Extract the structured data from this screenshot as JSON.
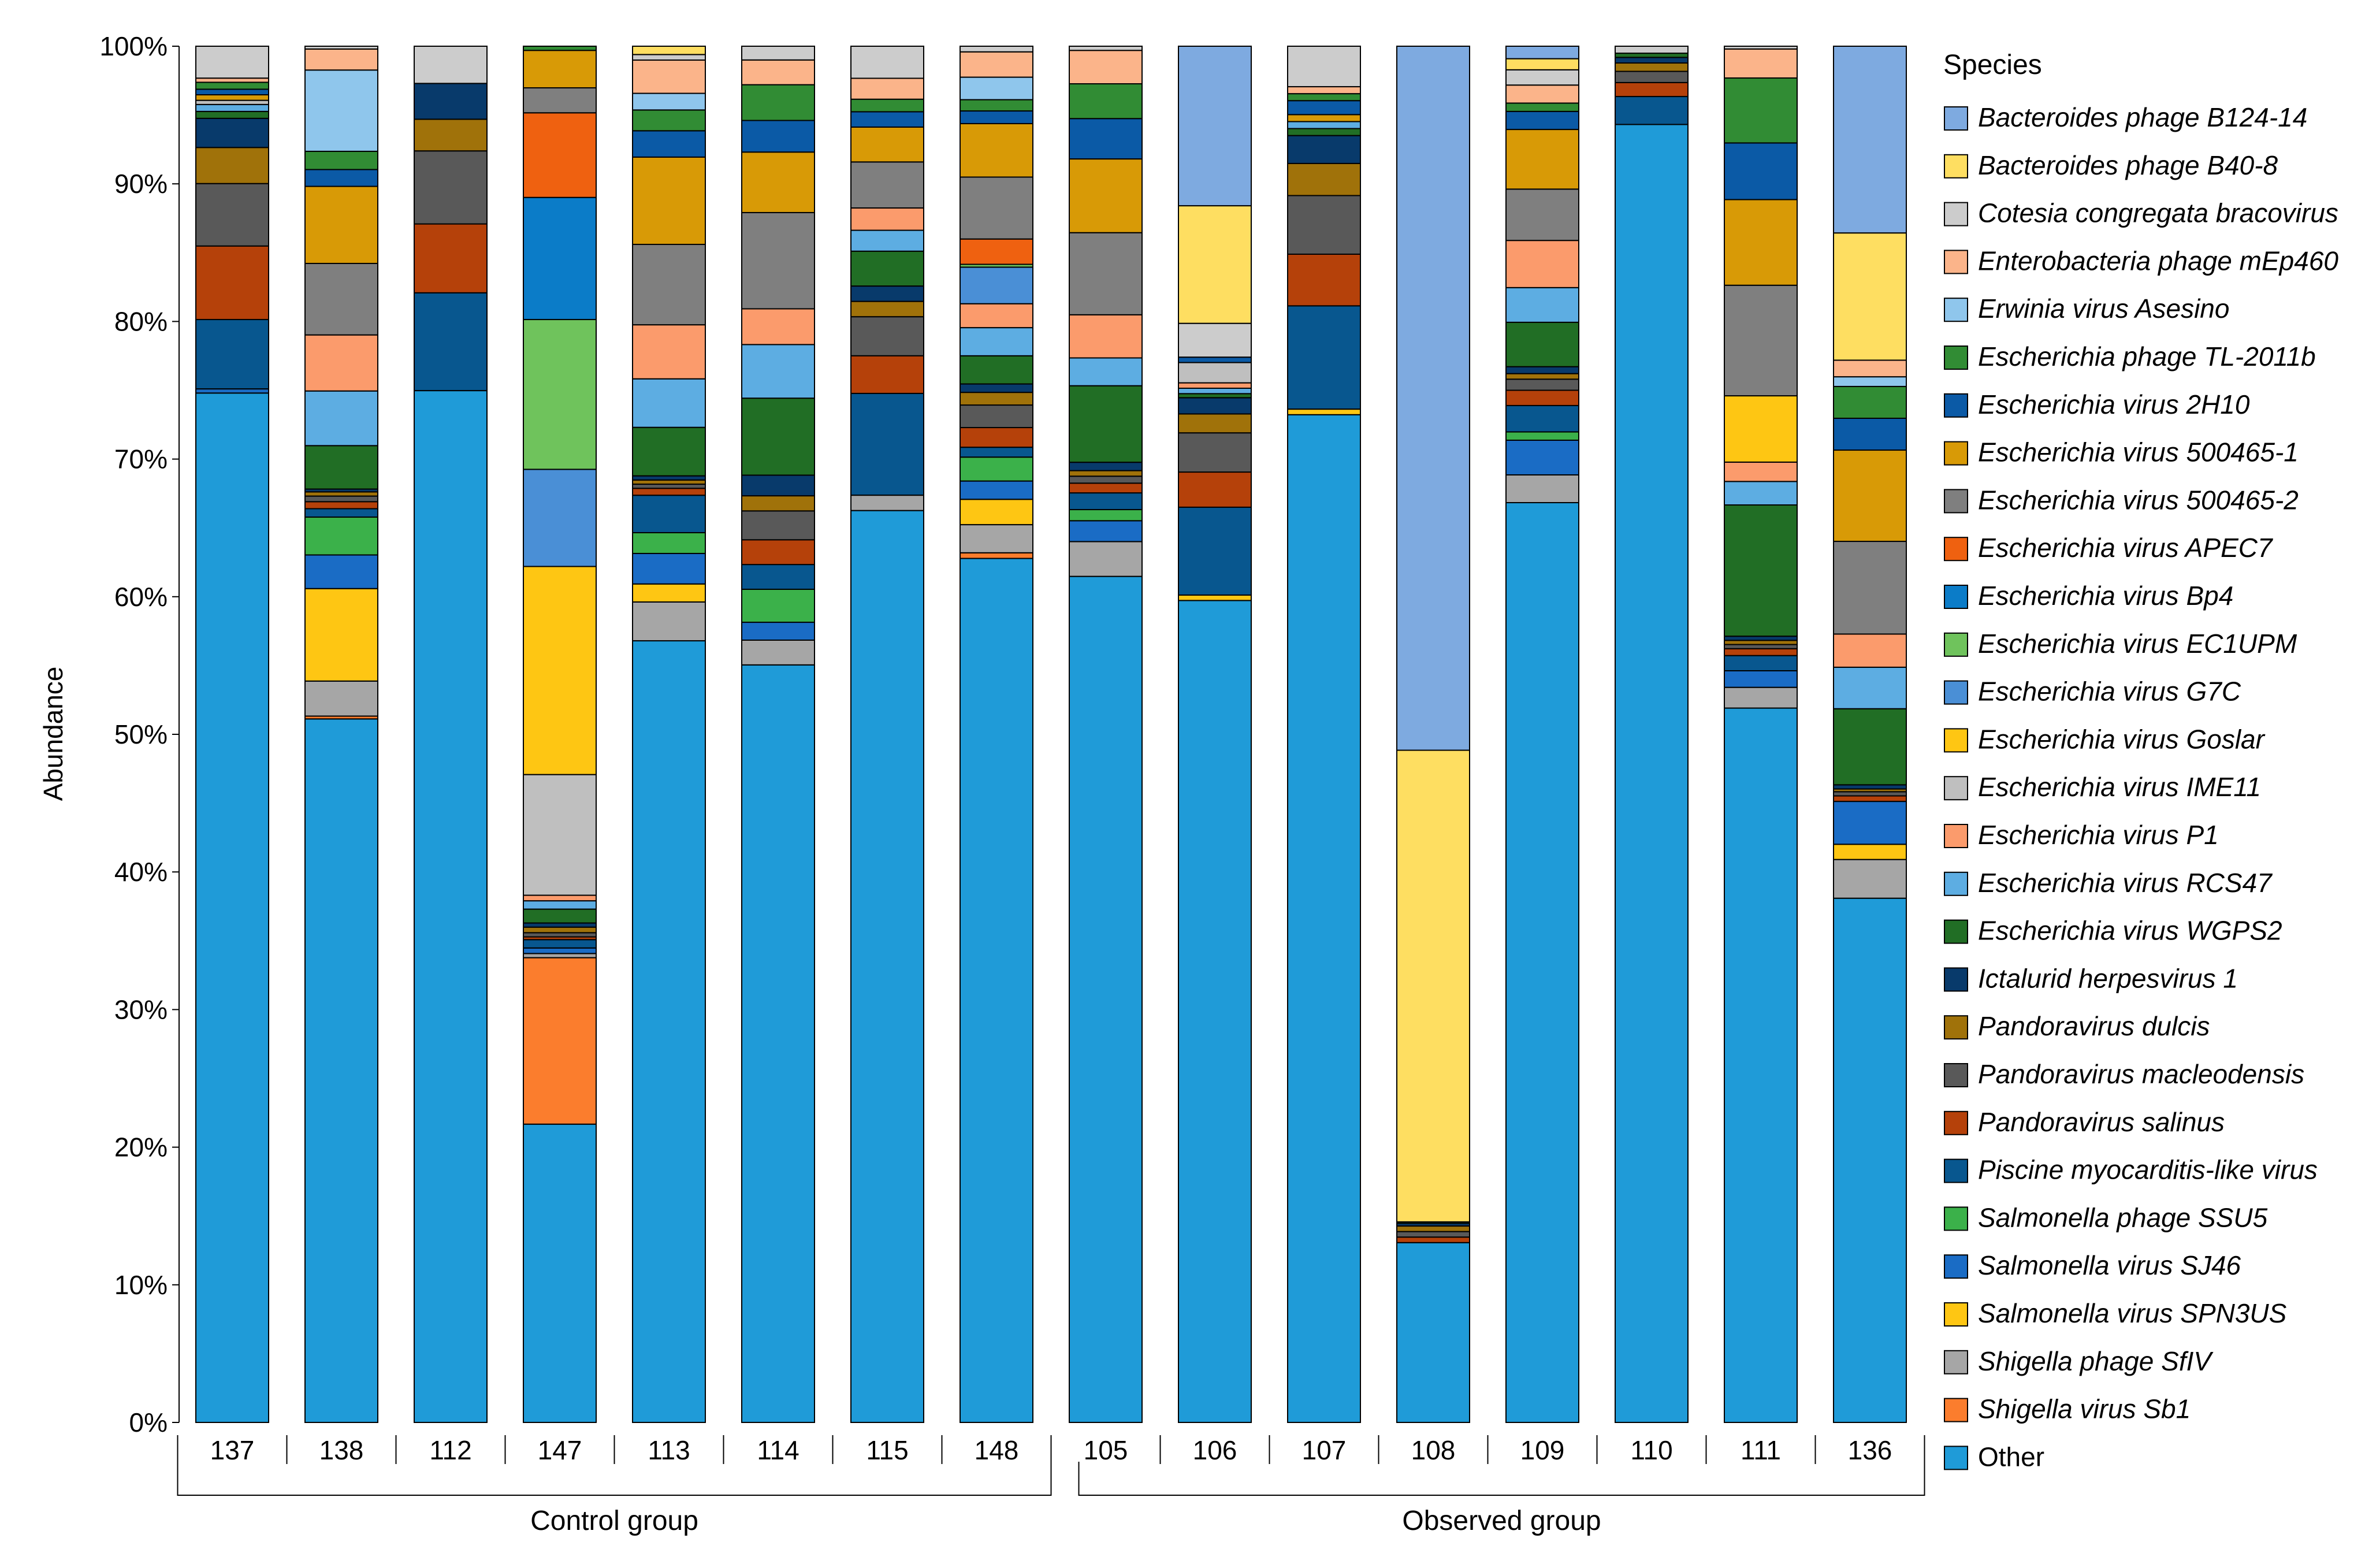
{
  "chart_data": {
    "type": "bar",
    "stacked": true,
    "ylabel": "Abundance",
    "ylim": [
      0,
      100
    ],
    "y_ticks": [
      "0%",
      "10%",
      "20%",
      "30%",
      "40%",
      "50%",
      "60%",
      "70%",
      "80%",
      "90%",
      "100%"
    ],
    "legend_title": "Species",
    "legend_position": "right",
    "groups": [
      {
        "label": "Control group",
        "categories": [
          "137",
          "138",
          "112",
          "147",
          "113",
          "114",
          "115",
          "148"
        ]
      },
      {
        "label": "Observed group",
        "categories": [
          "105",
          "106",
          "107",
          "108",
          "109",
          "110",
          "111",
          "136"
        ]
      }
    ],
    "categories": [
      "137",
      "138",
      "112",
      "147",
      "113",
      "114",
      "115",
      "148",
      "105",
      "106",
      "107",
      "108",
      "109",
      "110",
      "111",
      "136"
    ],
    "series": [
      {
        "name": "Other",
        "color": "#1f9bd8",
        "values": [
          74.2,
          50.2,
          74.9,
          21.5,
          56.4,
          55.1,
          65.4,
          61.4,
          60.8,
          60.8,
          72.2,
          13.0,
          66.3,
          92.9,
          51.7,
          37.9
        ]
      },
      {
        "name": "Shigella virus Sb1",
        "color": "#fb7d2d",
        "values": [
          0.0,
          0.2,
          0.0,
          12.0,
          0.0,
          0.0,
          0.0,
          0.4,
          0.0,
          0.0,
          0.0,
          0.0,
          0.0,
          0.0,
          0.0,
          0.0
        ]
      },
      {
        "name": "Shigella phage SfIV",
        "color": "#a6a6a6",
        "values": [
          0.0,
          2.5,
          0.0,
          0.3,
          2.8,
          1.8,
          1.1,
          2.0,
          2.5,
          0.0,
          0.0,
          0.0,
          2.0,
          0.0,
          1.5,
          2.8
        ]
      },
      {
        "name": "Salmonella virus SPN3US",
        "color": "#fec613",
        "values": [
          0.0,
          6.6,
          0.0,
          0.0,
          1.3,
          0.0,
          0.0,
          1.8,
          0.0,
          0.4,
          0.4,
          0.0,
          0.0,
          0.0,
          0.0,
          1.1
        ]
      },
      {
        "name": "Salmonella virus SJ46",
        "color": "#1a6cc5",
        "values": [
          0.3,
          2.4,
          0.0,
          0.4,
          2.2,
          1.3,
          0.0,
          1.3,
          1.5,
          0.0,
          0.0,
          0.0,
          2.5,
          0.0,
          1.2,
          3.1
        ]
      },
      {
        "name": "Salmonella phage SSU5",
        "color": "#3bb14a",
        "values": [
          0.0,
          2.7,
          0.0,
          0.0,
          1.5,
          2.4,
          0.0,
          1.7,
          0.8,
          0.0,
          0.0,
          0.0,
          0.6,
          0.0,
          0.0,
          0.0
        ]
      },
      {
        "name": "Piscine myocarditis-like virus",
        "color": "#08578f",
        "values": [
          5.0,
          0.6,
          7.1,
          0.6,
          2.7,
          1.8,
          7.3,
          0.7,
          1.2,
          6.5,
          7.4,
          0.0,
          1.9,
          2.0,
          1.1,
          0.0
        ]
      },
      {
        "name": "Pandoravirus salinus",
        "color": "#b5410a",
        "values": [
          5.3,
          0.5,
          5.0,
          0.2,
          0.5,
          1.8,
          2.7,
          1.4,
          0.7,
          2.6,
          3.7,
          0.4,
          1.1,
          1.0,
          0.5,
          0.4
        ]
      },
      {
        "name": "Pandoravirus macleodensis",
        "color": "#595959",
        "values": [
          4.5,
          0.4,
          5.3,
          0.3,
          0.3,
          2.1,
          2.8,
          1.6,
          0.5,
          2.9,
          4.2,
          0.4,
          0.8,
          0.8,
          0.3,
          0.3
        ]
      },
      {
        "name": "Pandoravirus dulcis",
        "color": "#a0720a",
        "values": [
          2.6,
          0.3,
          2.3,
          0.4,
          0.3,
          1.1,
          1.1,
          0.9,
          0.4,
          1.4,
          2.3,
          0.4,
          0.4,
          0.6,
          0.3,
          0.2
        ]
      },
      {
        "name": "Ictalurid herpesvirus 1",
        "color": "#083a6b",
        "values": [
          2.1,
          0.2,
          2.6,
          0.3,
          0.3,
          1.5,
          1.1,
          0.6,
          0.6,
          1.2,
          2.0,
          0.2,
          0.5,
          0.4,
          0.3,
          0.3
        ]
      },
      {
        "name": "Escherichia virus WGPS2",
        "color": "#216e25",
        "values": [
          0.5,
          3.1,
          0.0,
          1.0,
          3.5,
          5.6,
          2.5,
          2.0,
          5.5,
          0.3,
          0.5,
          0.1,
          3.2,
          0.3,
          9.5,
          5.5
        ]
      },
      {
        "name": "Escherichia virus RCS47",
        "color": "#5dade2",
        "values": [
          0.5,
          3.9,
          0.0,
          0.6,
          3.5,
          3.9,
          1.5,
          2.0,
          2.0,
          0.4,
          0.5,
          0.0,
          2.5,
          0.0,
          1.7,
          3.0
        ]
      },
      {
        "name": "Escherichia virus P1",
        "color": "#fb9b6c",
        "values": [
          0.0,
          4.0,
          0.0,
          0.4,
          3.9,
          2.6,
          1.6,
          1.7,
          3.1,
          0.4,
          0.0,
          0.0,
          3.4,
          0.0,
          1.4,
          2.4
        ]
      },
      {
        "name": "Escherichia virus IME11",
        "color": "#bfbfbf",
        "values": [
          0.3,
          0.0,
          0.0,
          8.7,
          0.0,
          0.0,
          0.0,
          0.0,
          0.0,
          1.5,
          0.0,
          0.0,
          0.0,
          0.0,
          0.0,
          0.0
        ]
      },
      {
        "name": "Escherichia virus Goslar",
        "color": "#fec613",
        "values": [
          0.0,
          0.0,
          0.0,
          15.0,
          0.0,
          0.0,
          0.0,
          0.0,
          0.0,
          0.0,
          0.0,
          0.0,
          0.0,
          0.0,
          4.8,
          0.0
        ]
      },
      {
        "name": "Escherichia virus G7C",
        "color": "#4a8fd6",
        "values": [
          0.0,
          0.0,
          0.0,
          7.0,
          0.0,
          0.0,
          0.0,
          2.6,
          0.0,
          0.0,
          0.0,
          0.0,
          0.0,
          0.0,
          0.0,
          0.0
        ]
      },
      {
        "name": "Escherichia virus EC1UPM",
        "color": "#6fc35c",
        "values": [
          0.0,
          0.0,
          0.0,
          10.8,
          0.0,
          0.0,
          0.0,
          0.2,
          0.0,
          0.0,
          0.0,
          0.0,
          0.0,
          0.0,
          0.0,
          0.0
        ]
      },
      {
        "name": "Escherichia virus Bp4",
        "color": "#0b7cc8",
        "values": [
          0.0,
          0.0,
          0.0,
          8.8,
          0.0,
          0.0,
          0.0,
          0.0,
          0.0,
          0.0,
          0.0,
          0.0,
          0.0,
          0.0,
          0.0,
          0.0
        ]
      },
      {
        "name": "Escherichia virus APEC7",
        "color": "#ef6110",
        "values": [
          0.0,
          0.0,
          0.0,
          6.1,
          0.0,
          0.0,
          0.0,
          1.8,
          0.0,
          0.0,
          0.0,
          0.0,
          0.0,
          0.0,
          0.0,
          0.0
        ]
      },
      {
        "name": "Escherichia virus 500465-2",
        "color": "#7f7f7f",
        "values": [
          0.0,
          5.1,
          0.0,
          1.8,
          5.8,
          7.0,
          3.3,
          4.4,
          5.9,
          0.0,
          0.0,
          0.0,
          3.7,
          0.0,
          8.0,
          6.7
        ]
      },
      {
        "name": "Escherichia virus 500465-1",
        "color": "#d89a06",
        "values": [
          0.4,
          5.5,
          0.0,
          2.7,
          6.3,
          4.4,
          2.5,
          3.8,
          5.3,
          0.0,
          0.5,
          0.0,
          4.3,
          0.0,
          6.2,
          6.6
        ]
      },
      {
        "name": "Escherichia virus 2H10",
        "color": "#0b5aa6",
        "values": [
          0.4,
          1.2,
          0.0,
          0.0,
          1.9,
          2.3,
          1.1,
          0.9,
          2.9,
          0.4,
          1.0,
          0.0,
          1.3,
          0.0,
          4.1,
          2.3
        ]
      },
      {
        "name": "Escherichia phage TL-2011b",
        "color": "#318c34",
        "values": [
          0.5,
          1.3,
          0.0,
          0.3,
          1.5,
          2.6,
          0.9,
          0.8,
          2.5,
          0.0,
          0.5,
          0.0,
          0.6,
          0.0,
          4.7,
          2.3
        ]
      },
      {
        "name": "Erwinia virus Asesino",
        "color": "#8fc6ec",
        "values": [
          0.0,
          5.8,
          0.0,
          0.0,
          1.2,
          0.0,
          0.0,
          1.6,
          0.0,
          0.0,
          0.0,
          0.0,
          0.0,
          0.0,
          0.0,
          0.7
        ]
      },
      {
        "name": "Enterobacteria phage mEp460",
        "color": "#fbb48a",
        "values": [
          0.3,
          1.5,
          0.0,
          0.0,
          2.4,
          1.8,
          1.5,
          1.8,
          2.4,
          0.0,
          0.5,
          0.0,
          1.3,
          0.0,
          2.1,
          1.2
        ]
      },
      {
        "name": "Cotesia congregata bracovirus",
        "color": "#cccccc",
        "values": [
          2.3,
          0.2,
          2.7,
          0.0,
          0.4,
          1.0,
          2.3,
          0.4,
          0.3,
          2.5,
          2.9,
          0.0,
          1.1,
          0.5,
          0.2,
          0.0
        ]
      },
      {
        "name": "Bacteroides phage B40-8",
        "color": "#fede61",
        "values": [
          0.0,
          0.0,
          0.0,
          0.0,
          0.6,
          0.0,
          0.0,
          0.0,
          0.0,
          8.7,
          0.0,
          34.1,
          0.8,
          0.0,
          0.0,
          9.2
        ]
      },
      {
        "name": "Bacteroides phage B124-14",
        "color": "#7eaae0",
        "values": [
          0.0,
          0.0,
          0.0,
          0.0,
          0.0,
          0.0,
          0.0,
          0.0,
          0.0,
          11.8,
          0.0,
          50.9,
          0.9,
          0.0,
          0.0,
          13.5
        ]
      }
    ],
    "legend_order": [
      "Bacteroides phage B124-14",
      "Bacteroides phage B40-8",
      "Cotesia congregata bracovirus",
      "Enterobacteria phage mEp460",
      "Erwinia virus Asesino",
      "Escherichia phage TL-2011b",
      "Escherichia virus 2H10",
      "Escherichia virus 500465-1",
      "Escherichia virus 500465-2",
      "Escherichia virus APEC7",
      "Escherichia virus Bp4",
      "Escherichia virus EC1UPM",
      "Escherichia virus G7C",
      "Escherichia virus Goslar",
      "Escherichia virus IME11",
      "Escherichia virus P1",
      "Escherichia virus RCS47",
      "Escherichia virus WGPS2",
      "Ictalurid herpesvirus 1",
      "Pandoravirus dulcis",
      "Pandoravirus macleodensis",
      "Pandoravirus salinus",
      "Piscine myocarditis-like virus",
      "Salmonella phage SSU5",
      "Salmonella virus SJ46",
      "Salmonella virus SPN3US",
      "Shigella phage SfIV",
      "Shigella virus Sb1",
      "Other"
    ]
  }
}
